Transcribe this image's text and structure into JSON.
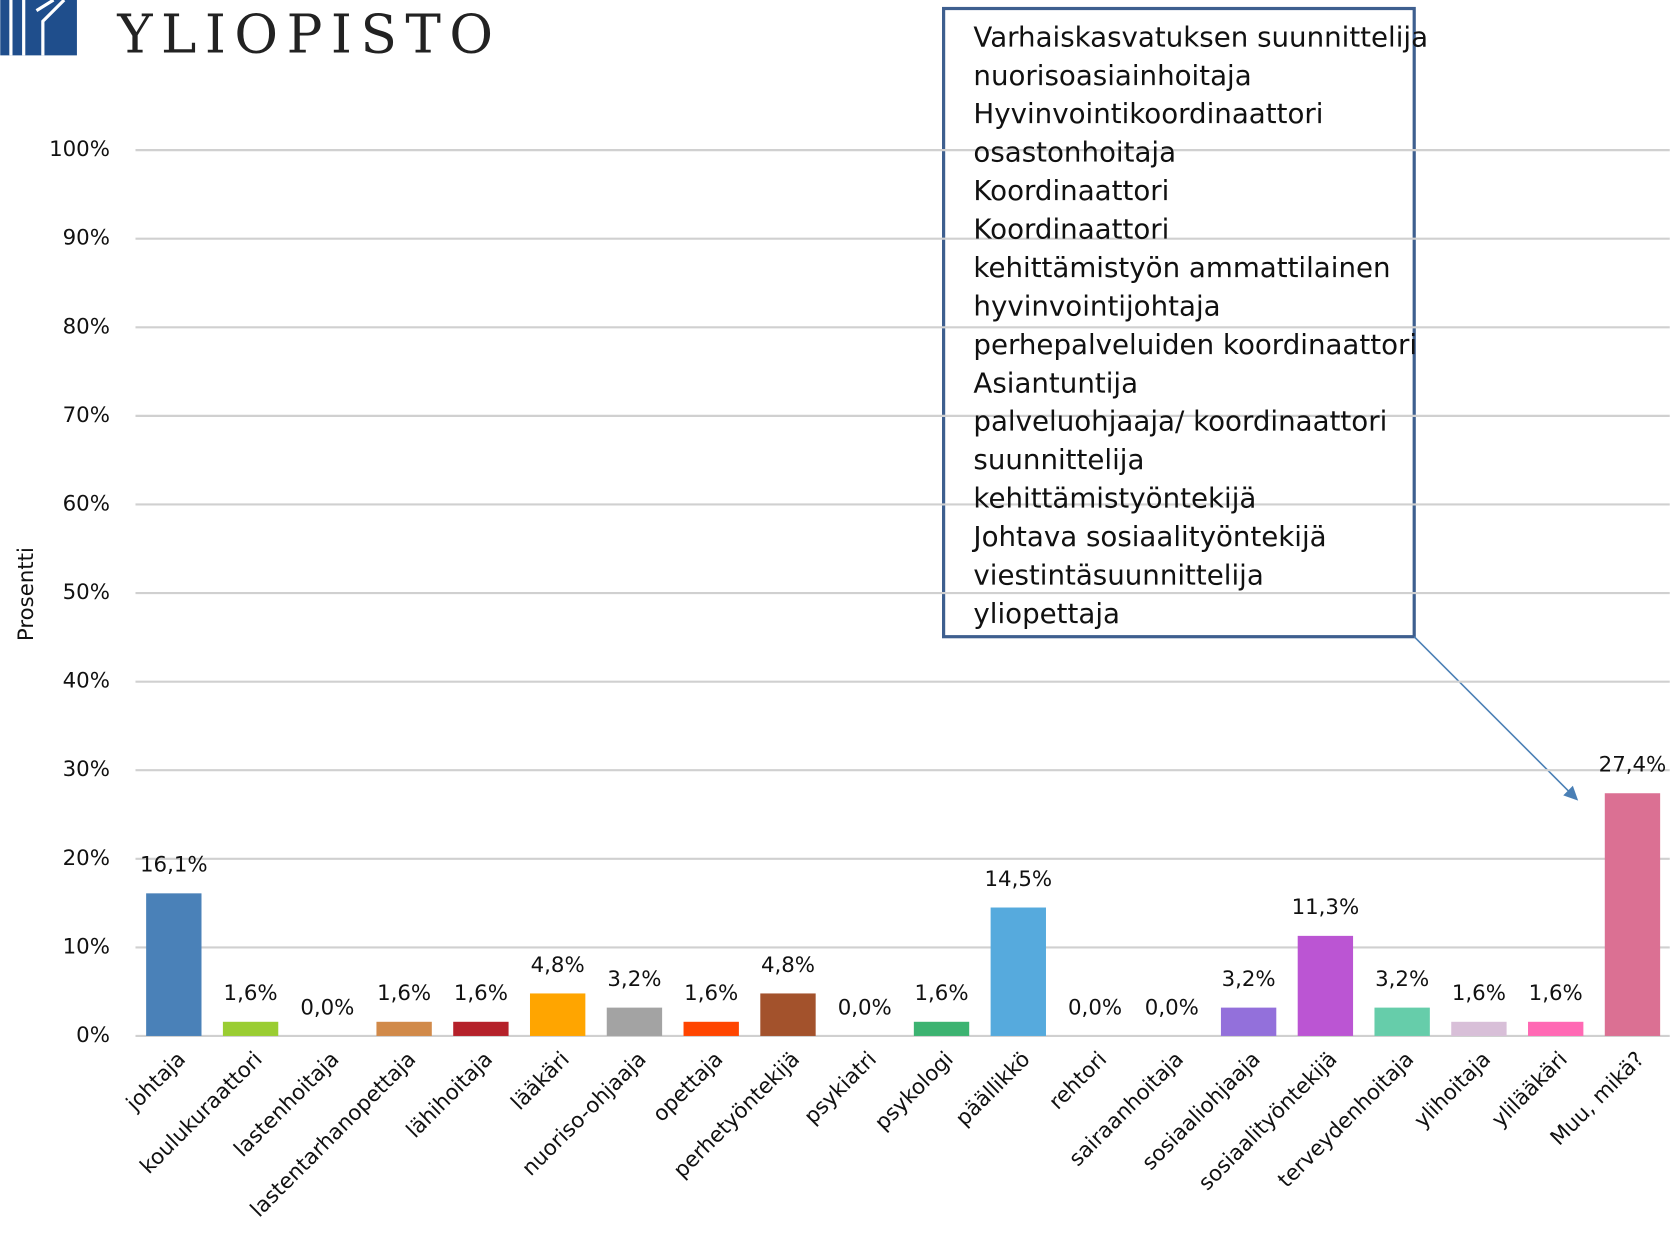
{
  "logo_text": "YLIOPISTO",
  "chart_data": {
    "type": "bar",
    "y_label": "Prosentti",
    "categories": [
      "johtaja",
      "koulukuraattori",
      "lastenhoitaja",
      "lastentarhanopettaja",
      "lähihoitaja",
      "lääkäri",
      "nuoriso-ohjaaja",
      "opettaja",
      "perhetyöntekijä",
      "psykiatri",
      "psykologi",
      "päällikkö",
      "rehtori",
      "sairaanhoitaja",
      "sosiaaliohjaaja",
      "sosiaalityöntekijä",
      "terveydenhoitaja",
      "ylihoitaja",
      "ylilääkäri",
      "Muu, mikä?"
    ],
    "values": [
      16.1,
      1.6,
      0.0,
      1.6,
      1.6,
      4.8,
      3.2,
      1.6,
      4.8,
      0.0,
      1.6,
      14.5,
      0.0,
      0.0,
      3.2,
      11.3,
      3.2,
      1.6,
      1.6,
      27.4
    ],
    "value_labels": [
      "16,1%",
      "1,6%",
      "0,0%",
      "1,6%",
      "1,6%",
      "4,8%",
      "3,2%",
      "1,6%",
      "4,8%",
      "0,0%",
      "1,6%",
      "14,5%",
      "0,0%",
      "0,0%",
      "3,2%",
      "11,3%",
      "3,2%",
      "1,6%",
      "1,6%",
      "27,4%"
    ],
    "colors": [
      "#4a81b8",
      "#9acd32",
      "#7fa0c8",
      "#d18a4a",
      "#b5212a",
      "#ffa500",
      "#a3a3a3",
      "#ff4500",
      "#a3522c",
      "#888888",
      "#3cb371",
      "#56aadd",
      "#999999",
      "#999999",
      "#9370db",
      "#bb55d3",
      "#66cdaa",
      "#d8bfd8",
      "#ff69b4",
      "#db7093"
    ],
    "ylim": [
      0,
      100
    ],
    "yticks": [
      {
        "value": 0,
        "label": "0%"
      },
      {
        "value": 10,
        "label": "10%"
      },
      {
        "value": 20,
        "label": "20%"
      },
      {
        "value": 30,
        "label": "30%"
      },
      {
        "value": 40,
        "label": "40%"
      },
      {
        "value": 50,
        "label": "50%"
      },
      {
        "value": 60,
        "label": "60%"
      },
      {
        "value": 70,
        "label": "70%"
      },
      {
        "value": 80,
        "label": "80%"
      },
      {
        "value": 90,
        "label": "90%"
      },
      {
        "value": 100,
        "label": "100%"
      }
    ],
    "grid": true,
    "annotation": [
      "Varhaiskasvatuksen suunnittelija",
      "nuorisoasiainhoitaja",
      "Hyvinvointikoordinaattori",
      "osastonhoitaja",
      "Koordinaattori",
      "Koordinaattori",
      "kehittämistyön ammattilainen",
      "hyvinvointijohtaja",
      "perhepalveluiden koordinaattori",
      "Asiantuntija",
      "palveluohjaaja/ koordinaattori",
      "suunnittelija",
      "kehittämistyöntekijä",
      "Johtava sosiaalityöntekijä",
      "viestintäsuunnittelija",
      "yliopettaja"
    ]
  }
}
